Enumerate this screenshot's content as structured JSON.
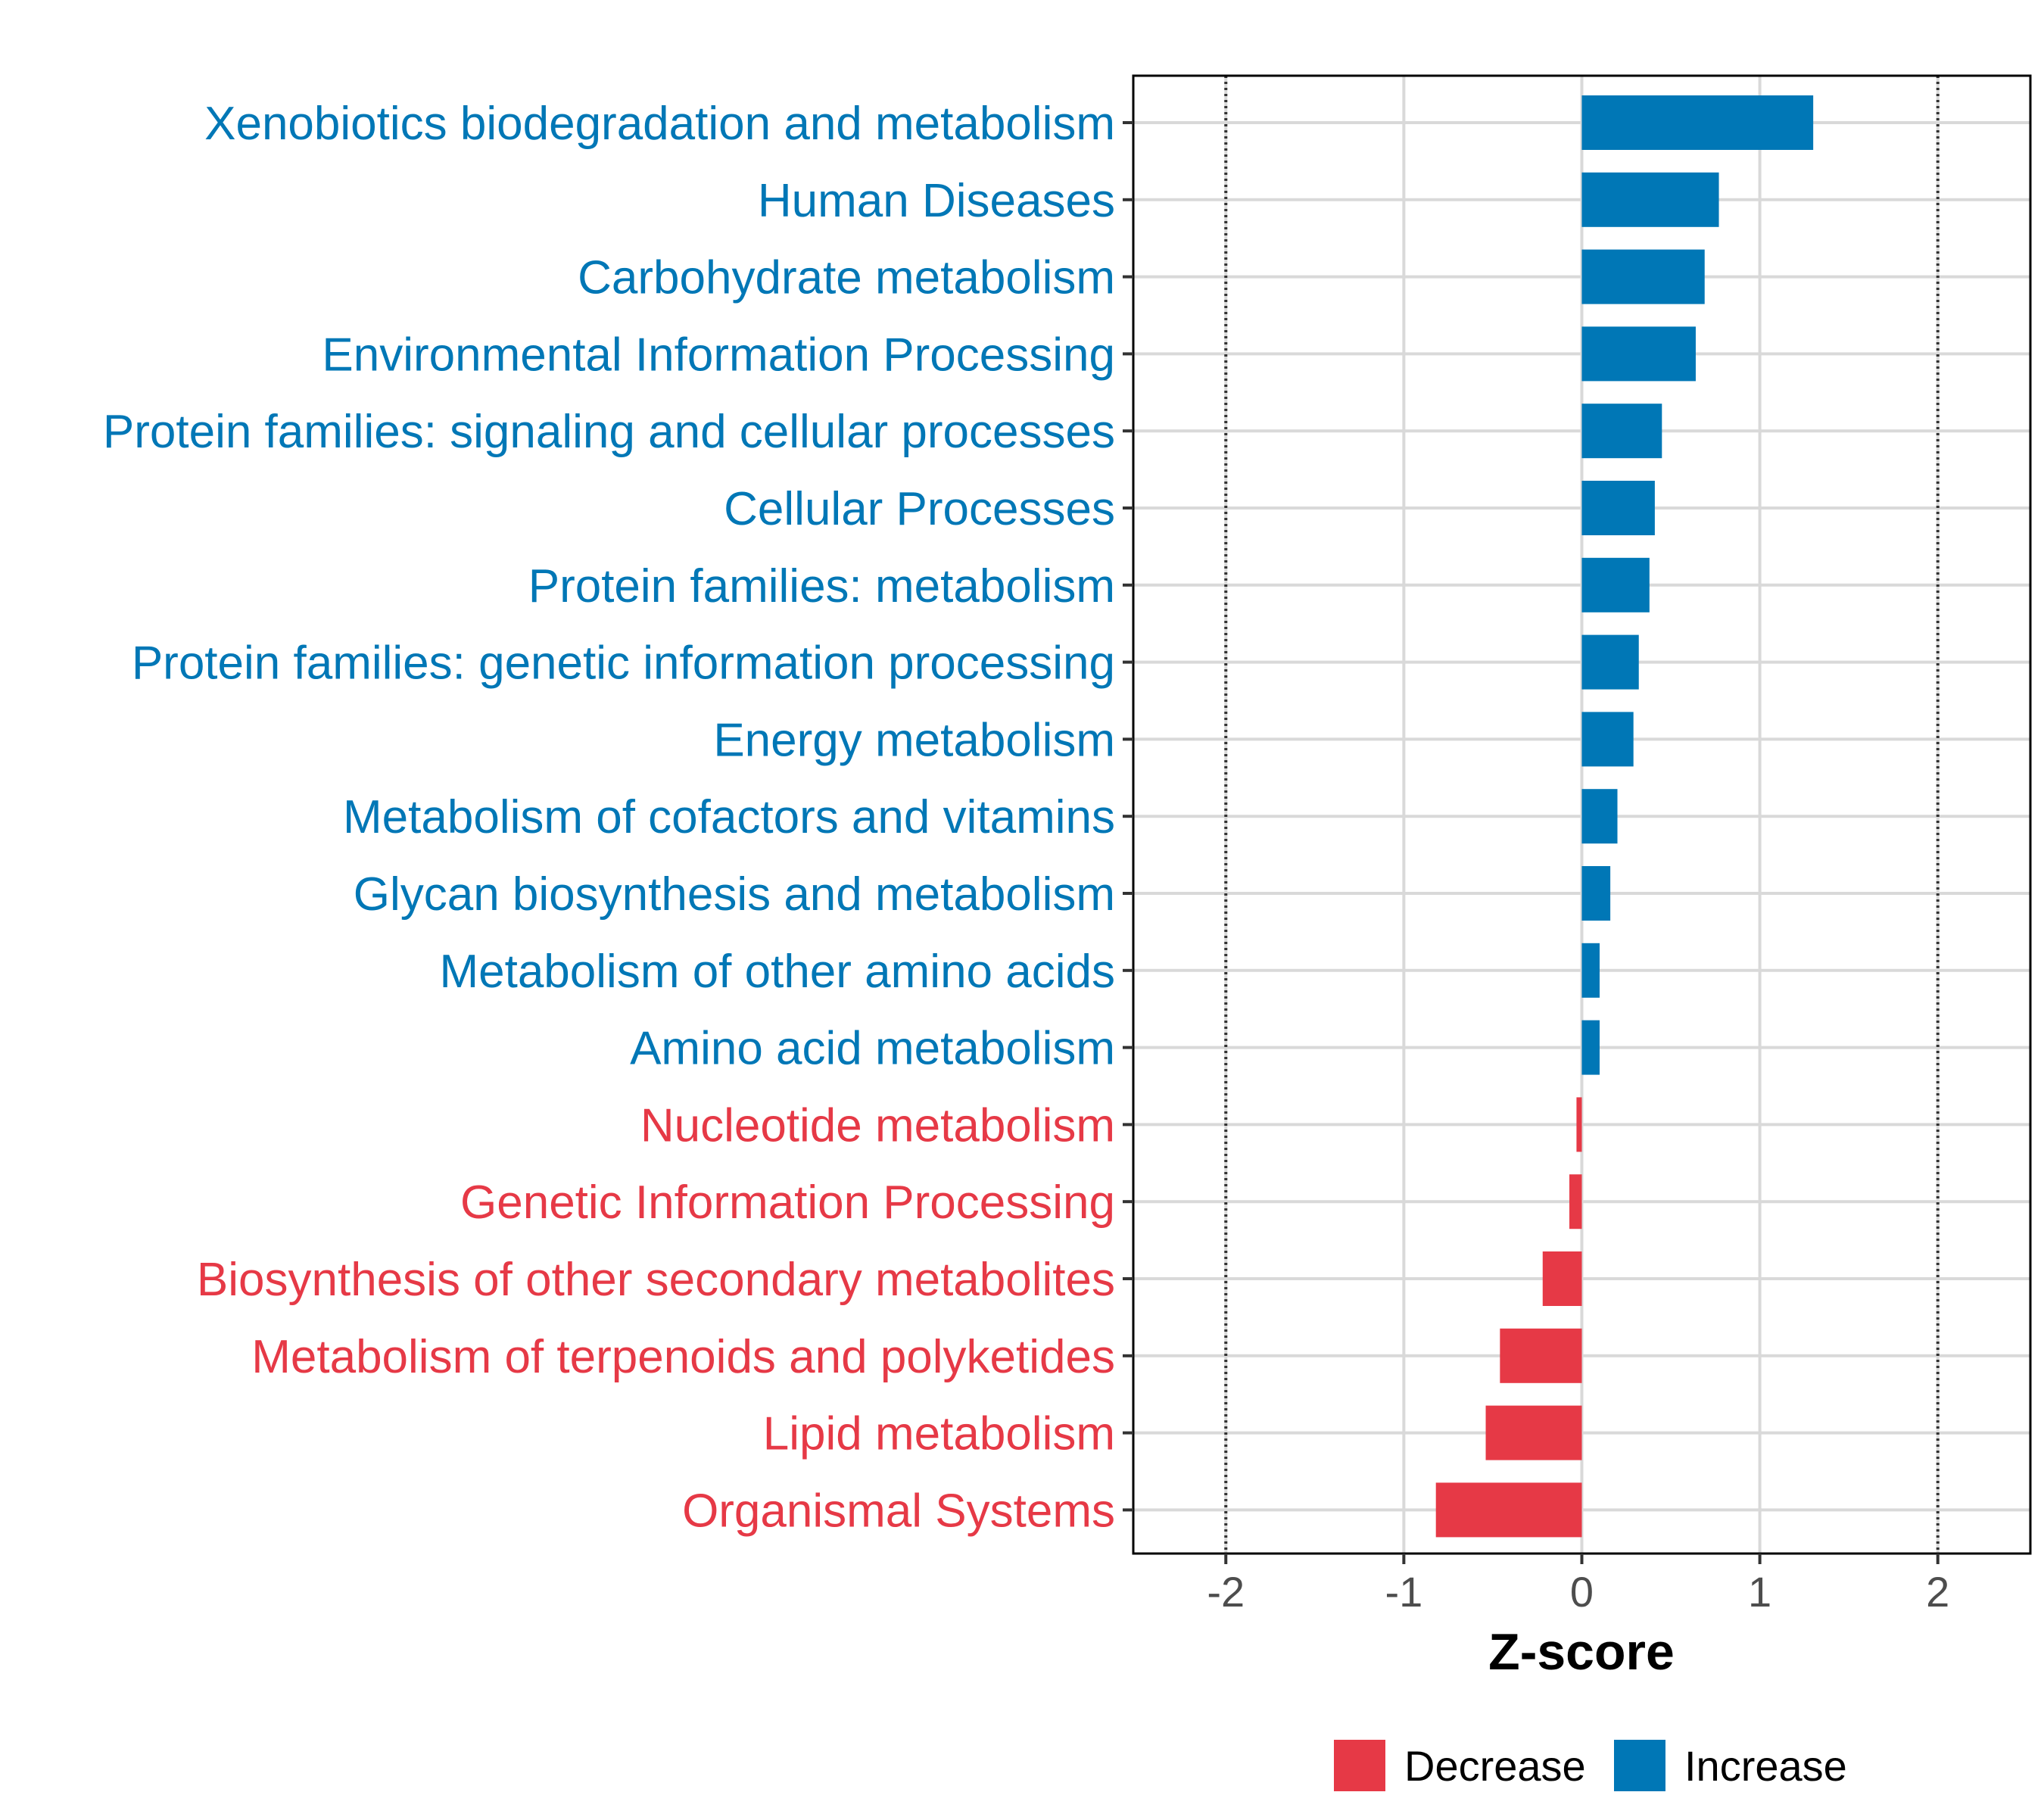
{
  "chart_data": {
    "type": "bar",
    "orientation": "horizontal",
    "categories": [
      "Xenobiotics biodegradation and metabolism",
      "Human Diseases",
      "Carbohydrate metabolism",
      "Environmental Information Processing",
      "Protein families: signaling and cellular processes",
      "Cellular Processes",
      "Protein families: metabolism",
      "Protein families: genetic information processing",
      "Energy metabolism",
      "Metabolism of cofactors and vitamins",
      "Glycan biosynthesis and metabolism",
      "Metabolism of other amino acids",
      "Amino acid metabolism",
      "Nucleotide metabolism",
      "Genetic Information Processing",
      "Biosynthesis of other secondary metabolites",
      "Metabolism of terpenoids and polyketides",
      "Lipid metabolism",
      "Organismal Systems"
    ],
    "values": [
      1.3,
      0.77,
      0.69,
      0.64,
      0.45,
      0.41,
      0.38,
      0.32,
      0.29,
      0.2,
      0.16,
      0.1,
      0.1,
      -0.03,
      -0.07,
      -0.22,
      -0.46,
      -0.54,
      -0.82
    ],
    "xlabel": "Z-score",
    "ylabel": "",
    "xlim": [
      -2.52,
      2.52
    ],
    "xticks": [
      -2,
      -1,
      0,
      1,
      2
    ],
    "xtick_labels": [
      "-2",
      "-1",
      "0",
      "1",
      "2"
    ],
    "reference_lines": [
      -2,
      2
    ],
    "grid": true,
    "legend": {
      "position": "bottom",
      "items": [
        {
          "label": "Decrease",
          "color": "#E63946"
        },
        {
          "label": "Increase",
          "color": "#0077B6"
        }
      ]
    },
    "colors": {
      "increase": "#0077B6",
      "decrease": "#E63946"
    }
  }
}
